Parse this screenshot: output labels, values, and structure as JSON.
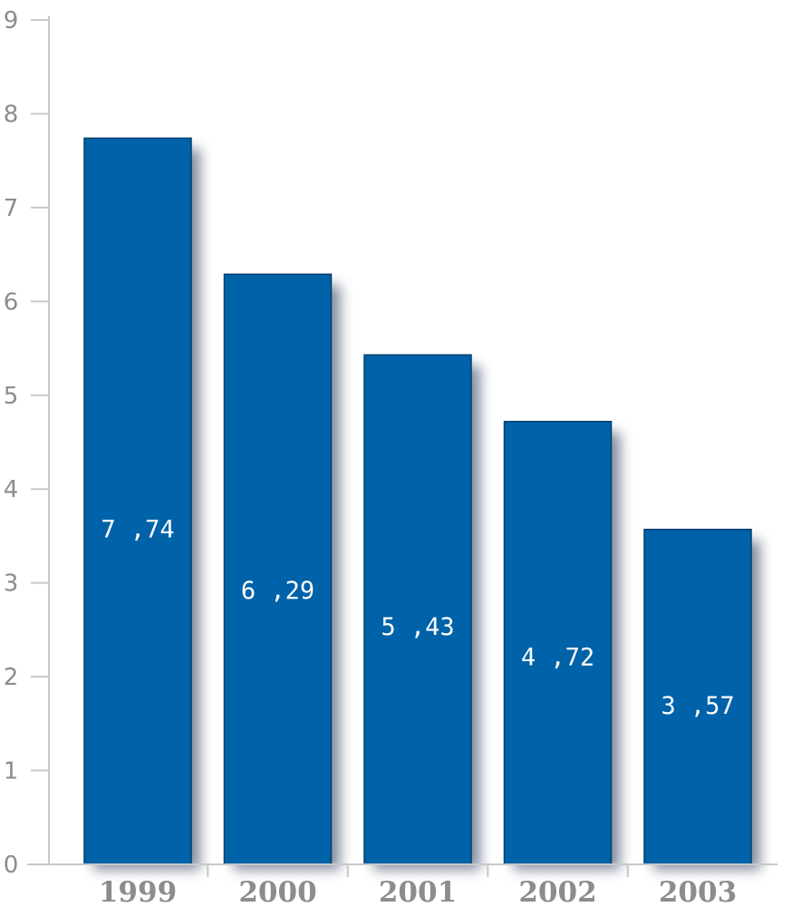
{
  "chart_data": {
    "type": "bar",
    "categories": [
      "1999",
      "2000",
      "2001",
      "2002",
      "2003"
    ],
    "values": [
      7.74,
      6.29,
      5.43,
      4.72,
      3.57
    ],
    "data_labels": [
      "7 ,74",
      "6 ,29",
      "5 ,43",
      "4 ,72",
      "3 ,57"
    ],
    "title": "",
    "xlabel": "",
    "ylabel": "",
    "ylim": [
      0,
      9
    ],
    "yticks": [
      "0",
      "1",
      "2",
      "3",
      "4",
      "5",
      "6",
      "7",
      "8",
      "9"
    ],
    "grid": false,
    "legend": "none",
    "bar_color": "#0062a8",
    "bar_edge_color": "#003f6e",
    "shadow_color": "#5a6680",
    "axis_color": "#c8c8c8",
    "tick_text_color": "#8c8c8c"
  }
}
